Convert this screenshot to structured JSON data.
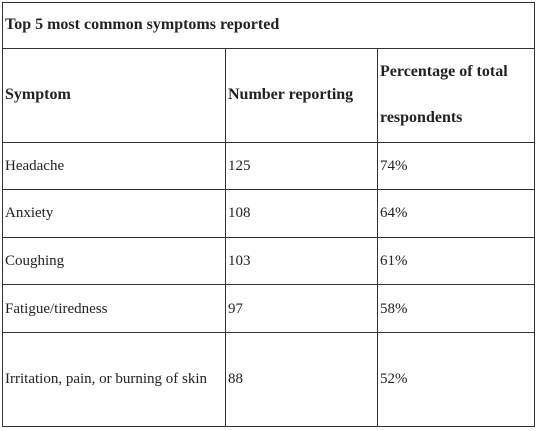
{
  "header": {
    "title": "Top 5 most common symptoms reported"
  },
  "table": {
    "columns": [
      "Symptom",
      "Number reporting",
      "Percentage of total respondents"
    ],
    "rows": [
      [
        "Headache",
        125,
        "74%"
      ],
      [
        "Anxiety",
        108,
        "64%"
      ],
      [
        "Coughing",
        103,
        "61%"
      ],
      [
        "Fatigue/tiredness",
        97,
        "58%"
      ],
      [
        "Irritation, pain, or burning of skin",
        88,
        "52%"
      ]
    ]
  }
}
